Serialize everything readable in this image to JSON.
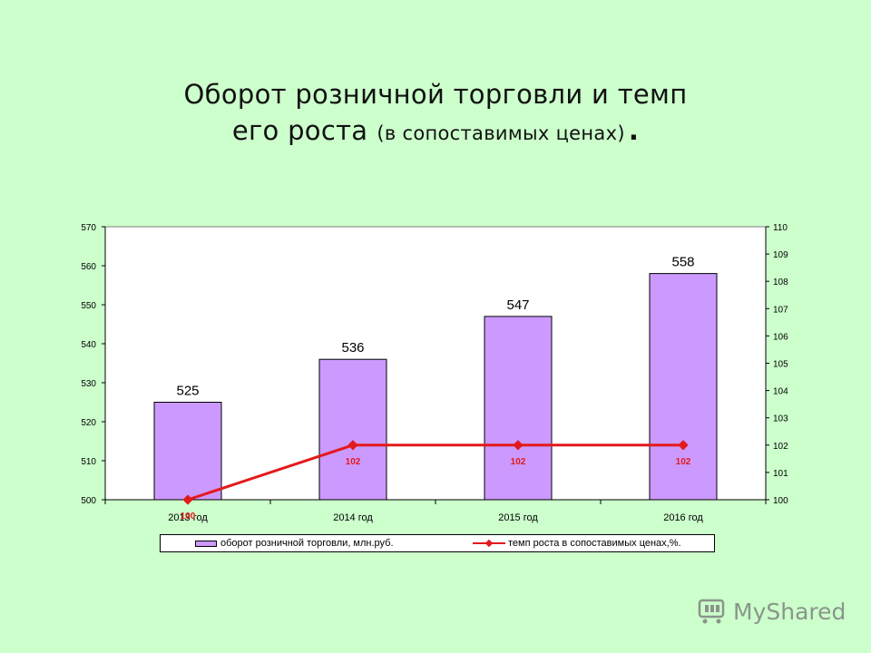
{
  "title": {
    "line1": "Оборот розничной торговли и темп",
    "line2_main": "его роста",
    "line2_sub": "(в сопоставимых ценах)",
    "line2_end": "."
  },
  "legend": {
    "bar_label": "оборот розничной торговли, млн.руб.",
    "line_label": "темп роста в сопоставимых ценах,%."
  },
  "watermark": {
    "text": "MyShared"
  },
  "colors": {
    "background": "#ccffcc",
    "bar_fill": "#cc99ff",
    "line": "#e31a1c"
  },
  "chart_data": {
    "type": "bar",
    "categories": [
      "2013 год",
      "2014 год",
      "2015 год",
      "2016 год"
    ],
    "series": [
      {
        "name": "оборот розничной торговли, млн.руб.",
        "type": "bar",
        "axis": "left",
        "values": [
          525,
          536,
          547,
          558
        ],
        "data_labels": [
          "525",
          "536",
          "547",
          "558"
        ]
      },
      {
        "name": "темп роста в сопоставимых ценах,%.",
        "type": "line",
        "axis": "right",
        "values": [
          100,
          102,
          102,
          102
        ],
        "data_labels": [
          "100",
          "102",
          "102",
          "102"
        ]
      }
    ],
    "y_left": {
      "min": 500,
      "max": 570,
      "step": 10
    },
    "y_right": {
      "min": 100,
      "max": 110,
      "step": 1
    },
    "grid": false,
    "legend_position": "bottom"
  }
}
